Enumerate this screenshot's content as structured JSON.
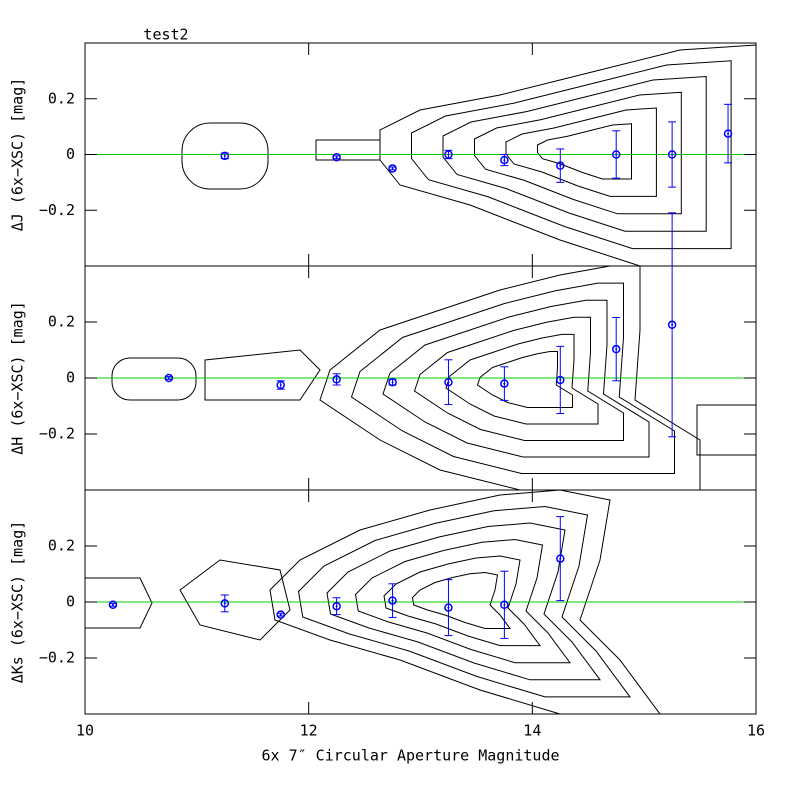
{
  "chart_data": [
    {
      "type": "scatter",
      "title": "test2",
      "ylabel": "ΔJ (6x−XSC) [mag]",
      "x": [
        11.25,
        12.25,
        12.75,
        13.25,
        13.75,
        14.25,
        14.75,
        15.25,
        15.75
      ],
      "values": [
        -0.005,
        -0.01,
        -0.05,
        0,
        -0.02,
        -0.04,
        0,
        0,
        0.075
      ],
      "errors": [
        0.01,
        0.005,
        0.005,
        0.015,
        0.02,
        0.06,
        0.085,
        0.117,
        0.105
      ],
      "color": "#0000ff",
      "reference_line": 0,
      "reference_color": "#00cc00",
      "xlim": [
        10,
        16
      ],
      "ylim": [
        -0.4,
        0.4
      ],
      "yticks": [
        {
          "value": -0.2,
          "label": "−0.2"
        },
        0,
        0.2
      ]
    },
    {
      "type": "scatter",
      "ylabel": "ΔH (6x−XSC) [mag]",
      "x": [
        10.75,
        11.75,
        12.25,
        12.75,
        13.25,
        13.75,
        14.25,
        14.75,
        15.25
      ],
      "values": [
        0,
        -0.025,
        -0.005,
        -0.015,
        -0.015,
        -0.02,
        -0.007,
        0.103,
        0.19
      ],
      "errors": [
        0.005,
        0.015,
        0.02,
        0.01,
        0.08,
        0.06,
        0.12,
        0.113,
        0.4
      ],
      "color": "#0000ff",
      "reference_line": 0,
      "reference_color": "#00cc00",
      "xlim": [
        10,
        16
      ],
      "ylim": [
        -0.4,
        0.4
      ],
      "yticks": [
        {
          "value": -0.2,
          "label": "−0.2"
        },
        0,
        0.2
      ]
    },
    {
      "type": "scatter",
      "ylabel": "ΔKs (6x−XSC) [mag]",
      "xlabel": "6x 7″ Circular Aperture Magnitude",
      "x": [
        10.25,
        11.25,
        11.75,
        12.25,
        12.75,
        13.25,
        13.75,
        14.25
      ],
      "values": [
        -0.01,
        -0.005,
        -0.045,
        -0.015,
        0.005,
        -0.02,
        -0.01,
        0.155
      ],
      "errors": [
        0.005,
        0.03,
        0.005,
        0.03,
        0.06,
        0.1,
        0.12,
        0.15
      ],
      "color": "#0000ff",
      "reference_line": 0,
      "reference_color": "#00cc00",
      "xlim": [
        10,
        16
      ],
      "ylim": [
        -0.4,
        0.4
      ],
      "xticks": [
        10,
        12,
        14,
        16
      ],
      "yticks": [
        {
          "value": -0.2,
          "label": "−0.2"
        },
        0,
        0.2
      ]
    }
  ]
}
